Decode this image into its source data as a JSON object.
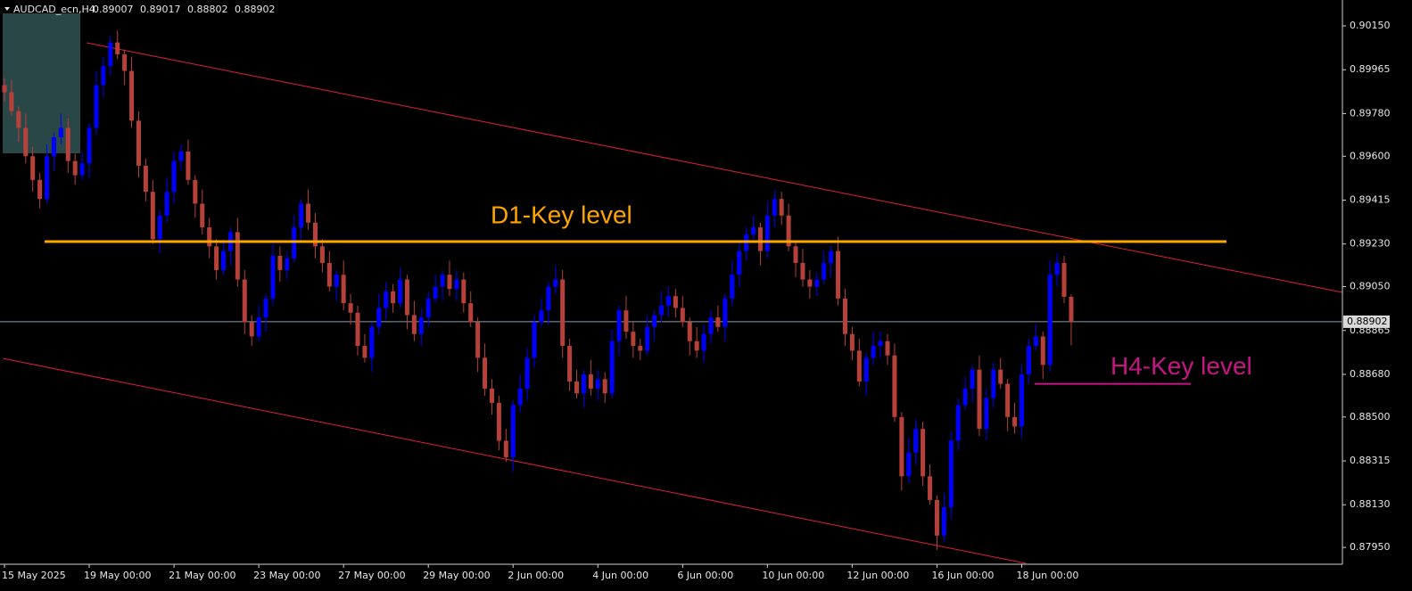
{
  "chart_data": {
    "type": "candlestick",
    "symbol": "AUDCAD_ecn,H4",
    "up_color": "#0000ff",
    "down_color": "#b5413a",
    "ylim": [
      0.87879,
      0.90259
    ],
    "yticks": [
      {
        "value": 0.9015,
        "label": "0.90150"
      },
      0.89965,
      {
        "value": 0.8978,
        "label": "0.89780"
      },
      {
        "value": 0.896,
        "label": "0.89600"
      },
      0.89415,
      {
        "value": 0.8923,
        "label": "0.89230"
      },
      {
        "value": 0.8905,
        "label": "0.89050"
      },
      0.88865,
      {
        "value": 0.8868,
        "label": "0.88680"
      },
      {
        "value": 0.885,
        "label": "0.88500"
      },
      0.88315,
      {
        "value": 0.8813,
        "label": "0.88130"
      },
      {
        "value": 0.8795,
        "label": "0.87950"
      }
    ],
    "last_price": 0.88902,
    "levels": [
      {
        "label": "D1-Key level",
        "value": 0.8924,
        "color": "#ffa500"
      },
      {
        "label": "H4-Key level",
        "value": 0.8864,
        "color": "#c71585"
      }
    ],
    "categories": [
      "15 May 2025",
      null,
      null,
      null,
      null,
      null,
      null,
      null,
      null,
      null,
      null,
      null,
      "19 May 00:00",
      null,
      null,
      null,
      null,
      null,
      null,
      null,
      null,
      null,
      null,
      null,
      "21 May 00:00",
      null,
      null,
      null,
      null,
      null,
      null,
      null,
      null,
      null,
      null,
      null,
      "23 May 00:00",
      null,
      null,
      null,
      null,
      null,
      null,
      null,
      null,
      null,
      null,
      null,
      "27 May 00:00",
      null,
      null,
      null,
      null,
      null,
      null,
      null,
      null,
      null,
      null,
      null,
      "29 May 00:00",
      null,
      null,
      null,
      null,
      null,
      null,
      null,
      null,
      null,
      null,
      null,
      "2 Jun 00:00",
      null,
      null,
      null,
      null,
      null,
      null,
      null,
      null,
      null,
      null,
      null,
      "4 Jun 00:00",
      null,
      null,
      null,
      null,
      null,
      null,
      null,
      null,
      null,
      null,
      null,
      "6 Jun 00:00",
      null,
      null,
      null,
      null,
      null,
      null,
      null,
      null,
      null,
      null,
      null,
      "10 Jun 00:00",
      null,
      null,
      null,
      null,
      null,
      null,
      null,
      null,
      null,
      null,
      null,
      "12 Jun 00:00",
      null,
      null,
      null,
      null,
      null,
      null,
      null,
      null,
      null,
      null,
      null,
      "16 Jun 00:00",
      null,
      null,
      null,
      null,
      null,
      null,
      null,
      null,
      null,
      null,
      null,
      "18 Jun 00:00",
      null,
      null,
      null,
      null,
      null,
      null,
      null
    ],
    "open": [
      0.899,
      0.8987,
      0.8979,
      0.8972,
      0.896,
      0.895,
      0.8942,
      0.896,
      0.8968,
      0.8972,
      0.8958,
      0.8952,
      0.8957,
      0.8972,
      0.899,
      0.8998,
      0.9008,
      0.9003,
      0.8996,
      0.8975,
      0.8956,
      0.8945,
      0.8925,
      0.8935,
      0.8945,
      0.8958,
      0.8962,
      0.895,
      0.894,
      0.893,
      0.8922,
      0.8912,
      0.892,
      0.8928,
      0.8908,
      0.889,
      0.8884,
      0.8892,
      0.89,
      0.8918,
      0.8912,
      0.8917,
      0.893,
      0.894,
      0.8932,
      0.8922,
      0.8915,
      0.8905,
      0.891,
      0.8898,
      0.8894,
      0.888,
      0.8875,
      0.8888,
      0.8896,
      0.8903,
      0.8898,
      0.8908,
      0.8893,
      0.8885,
      0.8892,
      0.89,
      0.8905,
      0.891,
      0.8904,
      0.8908,
      0.8898,
      0.889,
      0.8875,
      0.8862,
      0.8856,
      0.884,
      0.8833,
      0.8855,
      0.8862,
      0.8875,
      0.889,
      0.8895,
      0.8905,
      0.8908,
      0.888,
      0.8865,
      0.886,
      0.8868,
      0.8862,
      0.8866,
      0.886,
      0.8882,
      0.8895,
      0.8886,
      0.888,
      0.8878,
      0.8888,
      0.8893,
      0.8897,
      0.8901,
      0.8896,
      0.889,
      0.8882,
      0.8878,
      0.8885,
      0.8892,
      0.8888,
      0.89,
      0.891,
      0.892,
      0.8927,
      0.893,
      0.892,
      0.8935,
      0.8942,
      0.8935,
      0.8922,
      0.8915,
      0.8908,
      0.8905,
      0.8908,
      0.8915,
      0.892,
      0.89,
      0.8885,
      0.8878,
      0.8865,
      0.8875,
      0.888,
      0.8882,
      0.8876,
      0.885,
      0.8825,
      0.8835,
      0.8845,
      0.8825,
      0.8815,
      0.88,
      0.8812,
      0.884,
      0.8855,
      0.8862,
      0.887,
      0.8845,
      0.8858,
      0.887,
      0.8864,
      0.885,
      0.8846,
      0.8868,
      0.888,
      0.8884,
      0.8872,
      0.891,
      0.8915,
      0.89007
    ],
    "high": [
      0.8993,
      0.8992,
      0.8981,
      0.8978,
      0.8964,
      0.8953,
      0.8965,
      0.897,
      0.8978,
      0.8976,
      0.8961,
      0.8962,
      0.8974,
      0.8996,
      0.9002,
      0.9011,
      0.9013,
      0.9005,
      0.9002,
      0.8979,
      0.8959,
      0.895,
      0.8937,
      0.8951,
      0.8962,
      0.8965,
      0.8967,
      0.8952,
      0.8946,
      0.8934,
      0.8925,
      0.8925,
      0.893,
      0.8934,
      0.8912,
      0.8893,
      0.8897,
      0.8902,
      0.8924,
      0.8922,
      0.892,
      0.8935,
      0.8942,
      0.8946,
      0.8936,
      0.8925,
      0.892,
      0.8912,
      0.8916,
      0.8902,
      0.8897,
      0.8885,
      0.889,
      0.8902,
      0.8907,
      0.8906,
      0.8913,
      0.891,
      0.8899,
      0.8896,
      0.8903,
      0.891,
      0.8912,
      0.8916,
      0.8912,
      0.8911,
      0.8903,
      0.8892,
      0.8881,
      0.8866,
      0.8859,
      0.8845,
      0.8857,
      0.8868,
      0.8879,
      0.8893,
      0.89,
      0.8907,
      0.8914,
      0.8912,
      0.8883,
      0.887,
      0.887,
      0.8874,
      0.887,
      0.8869,
      0.8887,
      0.8897,
      0.8901,
      0.889,
      0.8883,
      0.8893,
      0.8895,
      0.8903,
      0.8905,
      0.8904,
      0.8901,
      0.8892,
      0.8888,
      0.8889,
      0.8895,
      0.8897,
      0.8902,
      0.8916,
      0.8924,
      0.893,
      0.8935,
      0.8932,
      0.8941,
      0.8946,
      0.8945,
      0.894,
      0.8924,
      0.8921,
      0.8912,
      0.8911,
      0.892,
      0.8922,
      0.8926,
      0.8904,
      0.8888,
      0.8883,
      0.8877,
      0.8886,
      0.8886,
      0.8885,
      0.8881,
      0.8852,
      0.8841,
      0.8849,
      0.8848,
      0.883,
      0.8817,
      0.8818,
      0.8844,
      0.8858,
      0.8867,
      0.8872,
      0.8876,
      0.8862,
      0.8873,
      0.8875,
      0.8866,
      0.8856,
      0.8872,
      0.8883,
      0.8889,
      0.8886,
      0.8916,
      0.8919,
      0.8918,
      0.89017
    ],
    "low": [
      0.8983,
      0.8977,
      0.8966,
      0.8957,
      0.8945,
      0.8938,
      0.894,
      0.8954,
      0.8965,
      0.8953,
      0.8948,
      0.895,
      0.8951,
      0.8969,
      0.8985,
      0.8994,
      0.9001,
      0.899,
      0.8972,
      0.8951,
      0.8941,
      0.8923,
      0.8919,
      0.8932,
      0.894,
      0.8954,
      0.8948,
      0.8934,
      0.8927,
      0.8917,
      0.8908,
      0.891,
      0.8914,
      0.8905,
      0.8885,
      0.888,
      0.8882,
      0.8886,
      0.8897,
      0.8907,
      0.8908,
      0.8915,
      0.8924,
      0.8929,
      0.8917,
      0.8911,
      0.8903,
      0.8899,
      0.8895,
      0.8889,
      0.8876,
      0.8873,
      0.8869,
      0.8885,
      0.8891,
      0.8894,
      0.8896,
      0.8887,
      0.8882,
      0.888,
      0.8888,
      0.8898,
      0.8899,
      0.8901,
      0.8899,
      0.8894,
      0.8888,
      0.8869,
      0.8859,
      0.8851,
      0.8836,
      0.8831,
      0.8827,
      0.8852,
      0.8857,
      0.8871,
      0.8888,
      0.8889,
      0.8902,
      0.8875,
      0.8861,
      0.8858,
      0.8854,
      0.8859,
      0.8857,
      0.8856,
      0.8858,
      0.8876,
      0.8883,
      0.8875,
      0.8874,
      0.8876,
      0.8882,
      0.889,
      0.8892,
      0.8892,
      0.8888,
      0.8876,
      0.8875,
      0.8873,
      0.8881,
      0.8886,
      0.8882,
      0.8897,
      0.8905,
      0.8916,
      0.8925,
      0.8914,
      0.8917,
      0.893,
      0.8931,
      0.892,
      0.8909,
      0.8905,
      0.89,
      0.8901,
      0.8906,
      0.8909,
      0.8897,
      0.888,
      0.8874,
      0.8863,
      0.8859,
      0.8872,
      0.8875,
      0.8872,
      0.8848,
      0.8819,
      0.8822,
      0.883,
      0.8821,
      0.8813,
      0.8794,
      0.8797,
      0.8807,
      0.8836,
      0.8853,
      0.8856,
      0.8842,
      0.884,
      0.8854,
      0.8862,
      0.8844,
      0.8843,
      0.8841,
      0.8864,
      0.8878,
      0.8866,
      0.8869,
      0.8905,
      0.8898,
      0.88802
    ],
    "close": [
      0.8987,
      0.8979,
      0.8972,
      0.896,
      0.895,
      0.8942,
      0.896,
      0.8968,
      0.8972,
      0.8958,
      0.8952,
      0.8957,
      0.8972,
      0.899,
      0.8998,
      0.9008,
      0.9003,
      0.8996,
      0.8975,
      0.8956,
      0.8945,
      0.8925,
      0.8935,
      0.8945,
      0.8958,
      0.8962,
      0.895,
      0.894,
      0.893,
      0.8922,
      0.8912,
      0.892,
      0.8928,
      0.8908,
      0.889,
      0.8884,
      0.8892,
      0.89,
      0.8918,
      0.8912,
      0.8917,
      0.893,
      0.894,
      0.8932,
      0.8922,
      0.8915,
      0.8905,
      0.891,
      0.8898,
      0.8894,
      0.888,
      0.8875,
      0.8888,
      0.8896,
      0.8903,
      0.8898,
      0.8908,
      0.8893,
      0.8885,
      0.8892,
      0.89,
      0.8905,
      0.891,
      0.8904,
      0.8908,
      0.8898,
      0.889,
      0.8875,
      0.8862,
      0.8856,
      0.884,
      0.8833,
      0.8855,
      0.8862,
      0.8875,
      0.889,
      0.8895,
      0.8905,
      0.8908,
      0.888,
      0.8865,
      0.886,
      0.8868,
      0.8862,
      0.8866,
      0.886,
      0.8882,
      0.8895,
      0.8886,
      0.888,
      0.8878,
      0.8888,
      0.8893,
      0.8897,
      0.8901,
      0.8896,
      0.889,
      0.8882,
      0.8878,
      0.8885,
      0.8892,
      0.8888,
      0.89,
      0.891,
      0.892,
      0.8927,
      0.893,
      0.892,
      0.8935,
      0.8942,
      0.8935,
      0.8922,
      0.8915,
      0.8908,
      0.8905,
      0.8908,
      0.8915,
      0.892,
      0.89,
      0.8885,
      0.8878,
      0.8865,
      0.8875,
      0.888,
      0.8882,
      0.8876,
      0.885,
      0.8825,
      0.8835,
      0.8845,
      0.8825,
      0.8815,
      0.88,
      0.8812,
      0.884,
      0.8855,
      0.8862,
      0.887,
      0.8845,
      0.8858,
      0.887,
      0.8864,
      0.885,
      0.8846,
      0.8868,
      0.888,
      0.8884,
      0.8872,
      0.891,
      0.8915,
      0.89007,
      0.88902
    ]
  }
}
